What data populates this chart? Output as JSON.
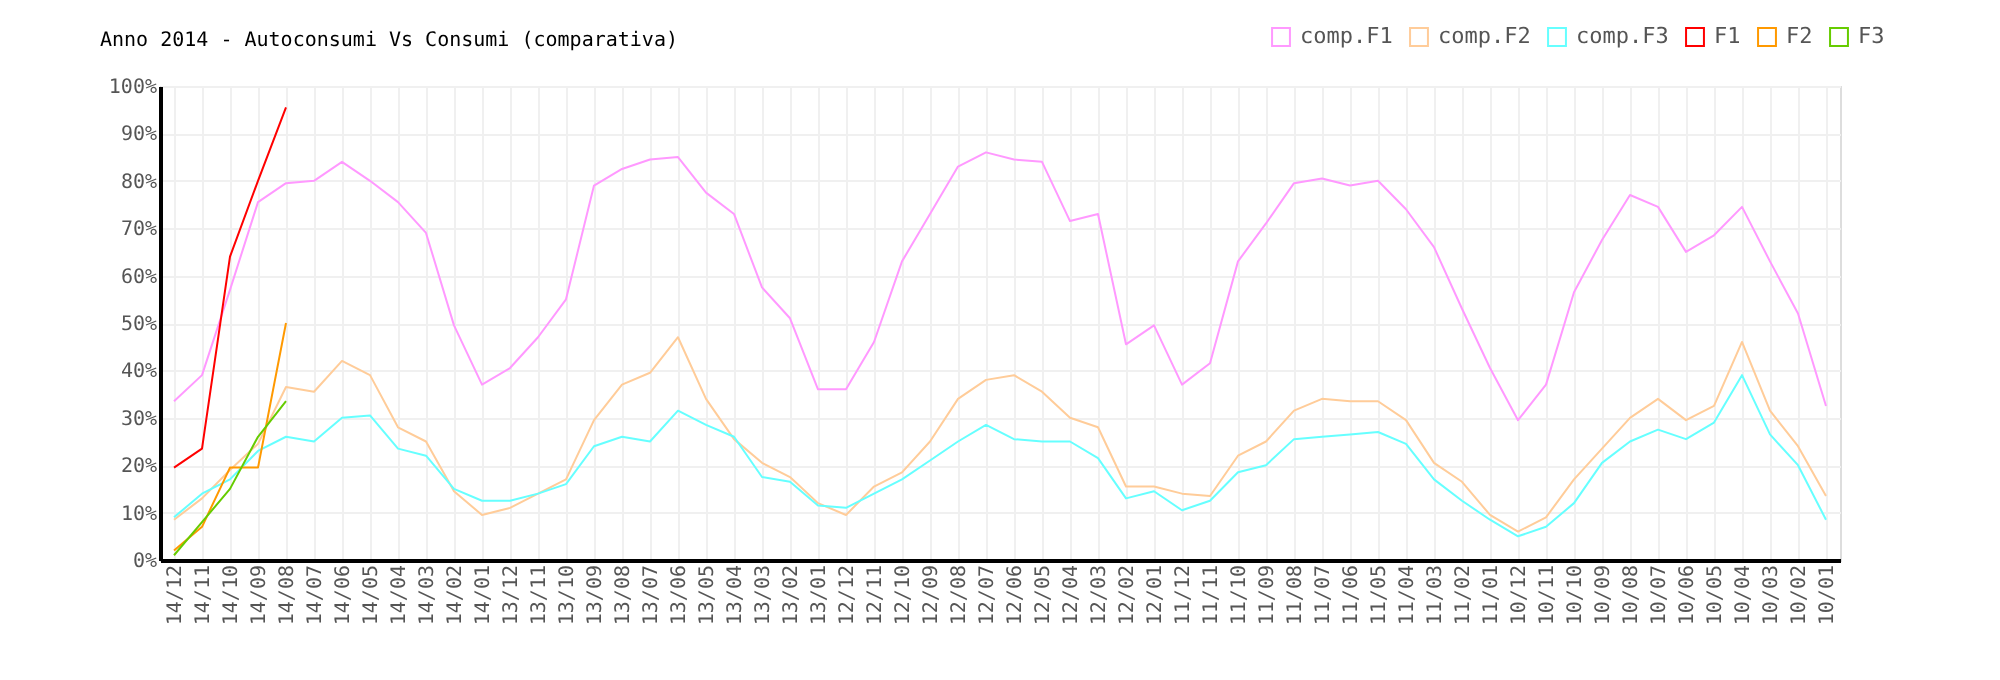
{
  "chart_data": {
    "type": "line",
    "title": "Anno 2014 - Autoconsumi Vs Consumi (comparativa)",
    "categories": [
      "14/12",
      "14/11",
      "14/10",
      "14/09",
      "14/08",
      "14/07",
      "14/06",
      "14/05",
      "14/04",
      "14/03",
      "14/02",
      "14/01",
      "13/12",
      "13/11",
      "13/10",
      "13/09",
      "13/08",
      "13/07",
      "13/06",
      "13/05",
      "13/04",
      "13/03",
      "13/02",
      "13/01",
      "12/12",
      "12/11",
      "12/10",
      "12/09",
      "12/08",
      "12/07",
      "12/06",
      "12/05",
      "12/04",
      "12/03",
      "12/02",
      "12/01",
      "11/12",
      "11/11",
      "11/10",
      "11/09",
      "11/08",
      "11/07",
      "11/06",
      "11/05",
      "11/04",
      "11/03",
      "11/02",
      "11/01",
      "10/12",
      "10/11",
      "10/10",
      "10/09",
      "10/08",
      "10/07",
      "10/06",
      "10/05",
      "10/04",
      "10/03",
      "10/02",
      "10/01"
    ],
    "series": [
      {
        "name": "comp.F1",
        "color": "#ff99ff",
        "values": [
          33.5,
          39,
          57,
          75.5,
          79.5,
          80,
          84,
          80,
          75.5,
          69,
          49.5,
          37,
          40.5,
          47,
          55,
          79,
          82.5,
          84.5,
          85,
          77.5,
          73,
          57.5,
          51,
          36,
          36,
          46,
          63,
          73,
          83,
          86,
          84.5,
          84,
          71.5,
          73,
          45.5,
          49.5,
          37,
          41.5,
          63,
          71,
          79.5,
          80.5,
          79,
          80,
          74,
          66,
          53,
          40.5,
          29.5,
          37,
          56.5,
          67.5,
          77,
          74.5,
          65,
          68.5,
          74.5,
          63,
          52,
          32.5
        ]
      },
      {
        "name": "comp.F2",
        "color": "#ffcc99",
        "values": [
          8.5,
          13,
          19,
          24.5,
          36.5,
          35.5,
          42,
          39,
          28,
          25,
          14.5,
          9.5,
          11,
          14,
          17,
          29.5,
          37,
          39.5,
          47,
          34,
          25.5,
          20.5,
          17.5,
          12,
          9.5,
          15.5,
          18.5,
          25,
          34,
          38,
          39,
          35.5,
          30,
          28,
          15.5,
          15.5,
          14,
          13.5,
          22,
          25,
          31.5,
          34,
          33.5,
          33.5,
          29.5,
          20.5,
          16.5,
          9.5,
          6,
          9,
          17,
          23.5,
          30,
          34,
          29.5,
          32.5,
          46,
          31.5,
          24,
          13.5
        ]
      },
      {
        "name": "comp.F3",
        "color": "#66ffff",
        "values": [
          9,
          14,
          17,
          23,
          26,
          25,
          30,
          30.5,
          23.5,
          22,
          15,
          12.5,
          12.5,
          14,
          16,
          24,
          26,
          25,
          31.5,
          28.5,
          26,
          17.5,
          16.5,
          11.5,
          11,
          14,
          17,
          21,
          25,
          28.5,
          25.5,
          25,
          25,
          21.5,
          13,
          14.5,
          10.5,
          12.5,
          18.5,
          20,
          25.5,
          26,
          26.5,
          27,
          24.5,
          17,
          12.5,
          8.5,
          5,
          7,
          12,
          20.5,
          25,
          27.5,
          25.5,
          29,
          39,
          26.5,
          20,
          8.5
        ]
      },
      {
        "name": "F1",
        "color": "#ff0000",
        "x": [
          "14/12",
          "14/11",
          "14/10",
          "14/09",
          "14/08"
        ],
        "values": [
          19.5,
          23.5,
          64,
          80,
          95.5
        ]
      },
      {
        "name": "F2",
        "color": "#ff9900",
        "x": [
          "14/12",
          "14/11",
          "14/10",
          "14/09",
          "14/08"
        ],
        "values": [
          2,
          7,
          19.5,
          19.5,
          50
        ]
      },
      {
        "name": "F3",
        "color": "#66cc00",
        "x": [
          "14/12",
          "14/11",
          "14/10",
          "14/09",
          "14/08"
        ],
        "values": [
          1,
          8,
          15,
          26,
          33.5
        ]
      }
    ],
    "ylim": [
      0,
      100
    ],
    "yticks": [
      {
        "value": 0,
        "label": "0%"
      },
      {
        "value": 10,
        "label": "10%"
      },
      {
        "value": 20,
        "label": "20%"
      },
      {
        "value": 30,
        "label": "30%"
      },
      {
        "value": 40,
        "label": "40%"
      },
      {
        "value": 50,
        "label": "50%"
      },
      {
        "value": 60,
        "label": "60%"
      },
      {
        "value": 70,
        "label": "70%"
      },
      {
        "value": 80,
        "label": "80%"
      },
      {
        "value": 90,
        "label": "90%"
      },
      {
        "value": 100,
        "label": "100%"
      }
    ],
    "grid": true,
    "legend": "top right",
    "marker": "none",
    "line_style": "solid"
  }
}
